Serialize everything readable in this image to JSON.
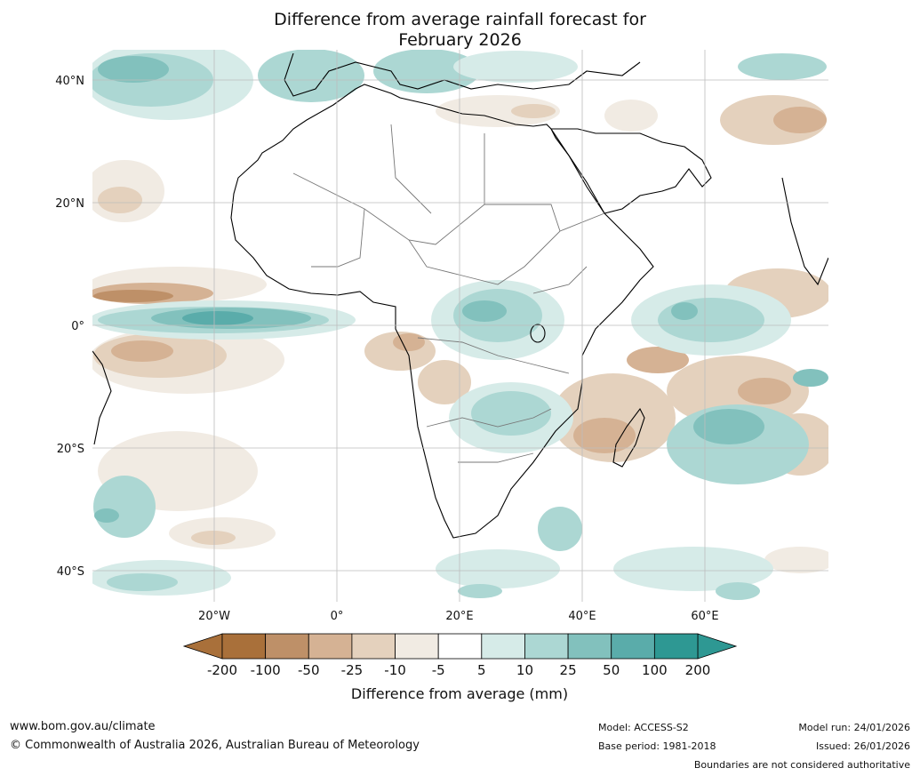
{
  "title": {
    "line1": "Difference from average rainfall forecast for",
    "line2": "February 2026"
  },
  "axes": {
    "lat_labels": [
      "40°N",
      "20°N",
      "0°",
      "20°S",
      "40°S"
    ],
    "lat_values": [
      40,
      20,
      0,
      -20,
      -40
    ],
    "lon_labels": [
      "20°W",
      "0°",
      "20°E",
      "40°E",
      "60°E"
    ],
    "lon_values": [
      -20,
      0,
      20,
      40,
      60
    ],
    "lon_range": [
      -40,
      80
    ],
    "lat_range": [
      -45,
      45
    ]
  },
  "colorbar": {
    "title": "Difference from average (mm)",
    "tick_labels": [
      "-200",
      "-100",
      "-50",
      "-25",
      "-10",
      "-5",
      "5",
      "10",
      "25",
      "50",
      "100",
      "200"
    ],
    "colors": [
      "#a9703a",
      "#be9068",
      "#d5b294",
      "#e4d1bd",
      "#f1ebe3",
      "#ffffff",
      "#d6ebe8",
      "#acd7d3",
      "#82c1bd",
      "#5aacaa",
      "#2e9893"
    ],
    "extend_low_color": "#a9703a",
    "extend_high_color": "#2e9893"
  },
  "footer": {
    "website": "www.bom.gov.au/climate",
    "copyright": "© Commonwealth of Australia 2026, Australian Bureau of Meteorology",
    "model": "Model: ACCESS-S2",
    "base_period": "Base period: 1981-2018",
    "model_run": "Model run: 24/01/2026",
    "issued": "Issued: 26/01/2026",
    "disclaimer": "Boundaries are not considered authoritative"
  }
}
